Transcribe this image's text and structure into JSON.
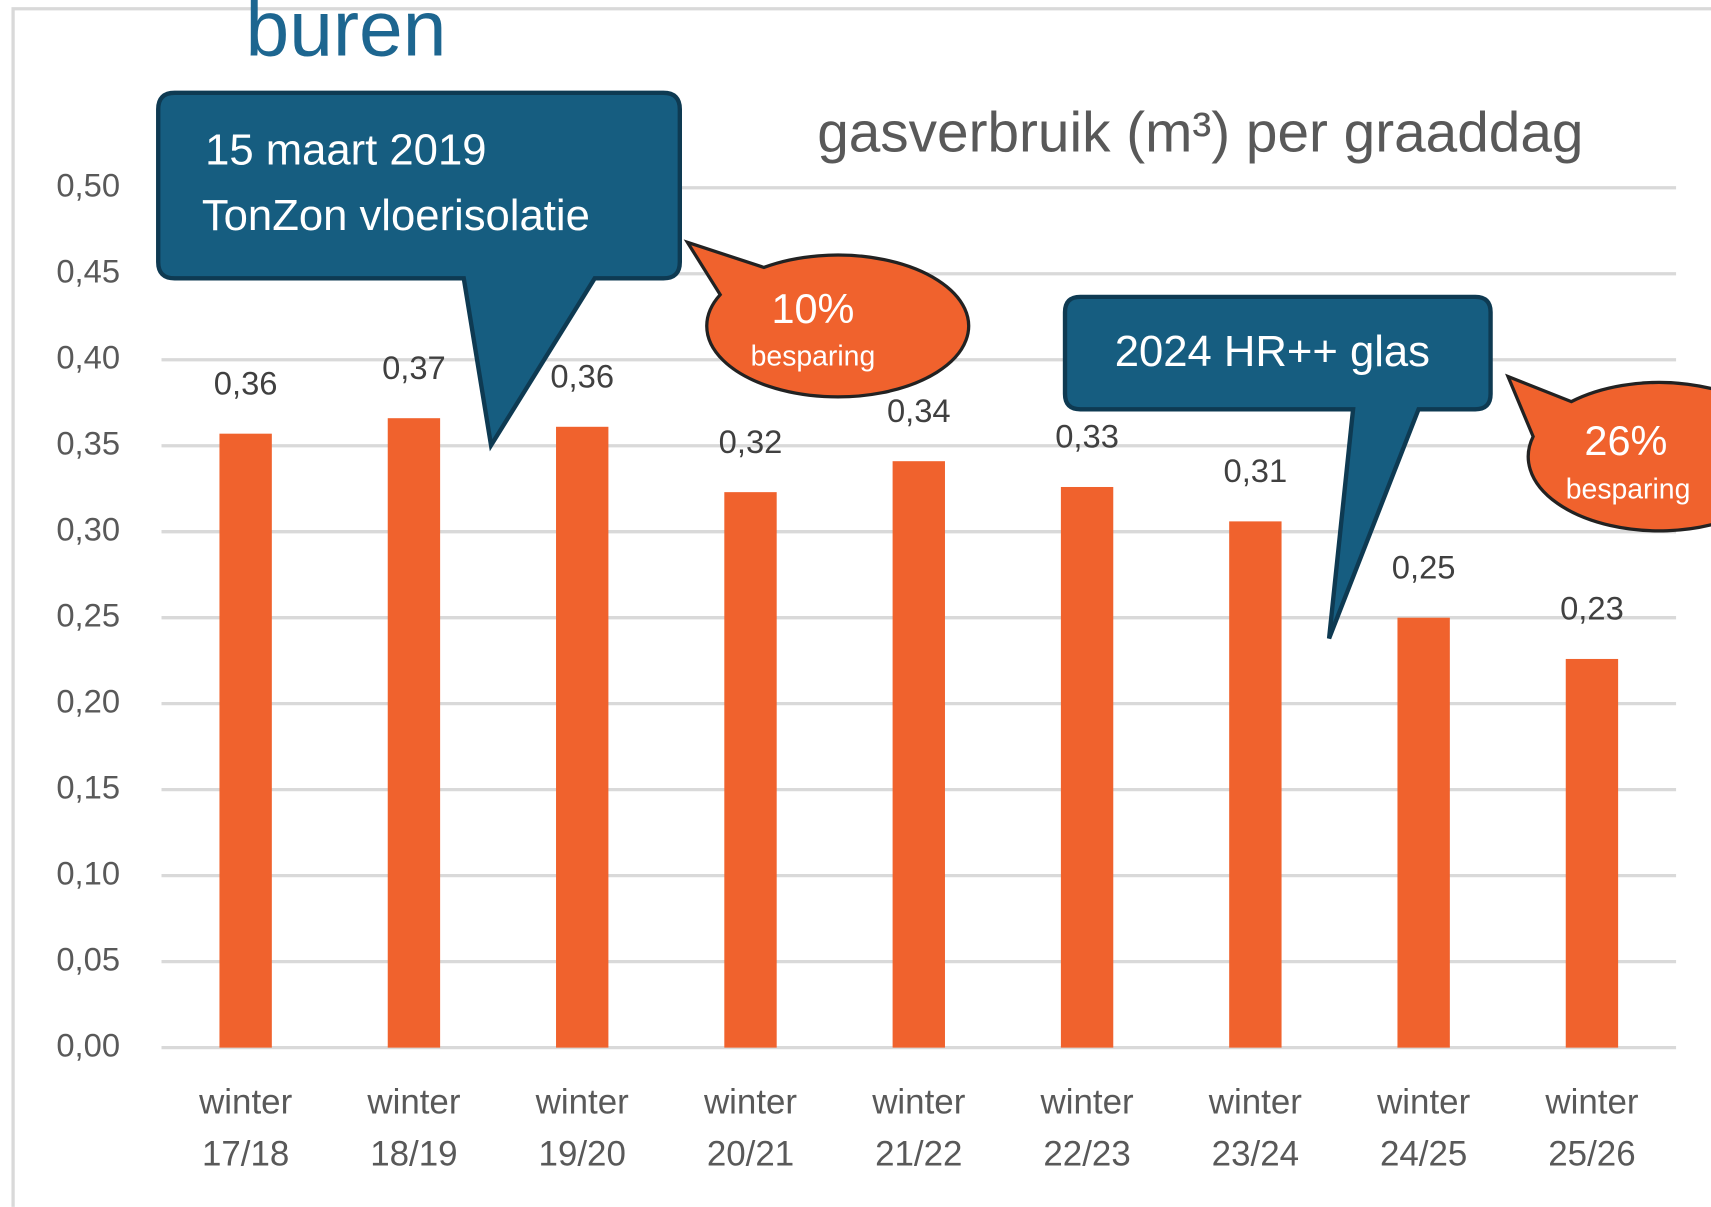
{
  "chart_data": {
    "type": "bar",
    "title": "gasverbruik (m³) per graaddag",
    "categories": [
      "winter 17/18",
      "winter 18/19",
      "winter 19/20",
      "winter 20/21",
      "winter 21/22",
      "winter 22/23",
      "winter 23/24",
      "winter 24/25",
      "winter 25/26"
    ],
    "values": [
      0.357,
      0.366,
      0.361,
      0.323,
      0.341,
      0.326,
      0.306,
      0.25,
      0.226
    ],
    "value_labels": [
      "0,36",
      "0,37",
      "0,36",
      "0,32",
      "0,34",
      "0,33",
      "0,31",
      "0,25",
      "0,23"
    ],
    "color": "#f0622d",
    "ylim": [
      0,
      0.5
    ],
    "yticks": [
      {
        "value": 0,
        "label": "0,00"
      },
      {
        "value": 0.05,
        "label": "0,05"
      },
      {
        "value": 0.1,
        "label": "0,10"
      },
      {
        "value": 0.15,
        "label": "0,15"
      },
      {
        "value": 0.2,
        "label": "0,20"
      },
      {
        "value": 0.25,
        "label": "0,25"
      },
      {
        "value": 0.3,
        "label": "0,30"
      },
      {
        "value": 0.35,
        "label": "0,35"
      },
      {
        "value": 0.4,
        "label": "0,40"
      },
      {
        "value": 0.45,
        "label": "0,45"
      },
      {
        "value": 0.5,
        "label": "0,50"
      }
    ],
    "grid": true,
    "annotations": {
      "heading": "buren",
      "callout1": [
        "15 maart 2019",
        "TonZon vloerisolatie"
      ],
      "saving1": [
        "10%",
        "besparing"
      ],
      "callout2": "2024 HR++ glas",
      "saving2": [
        "26%",
        "besparing"
      ]
    }
  }
}
